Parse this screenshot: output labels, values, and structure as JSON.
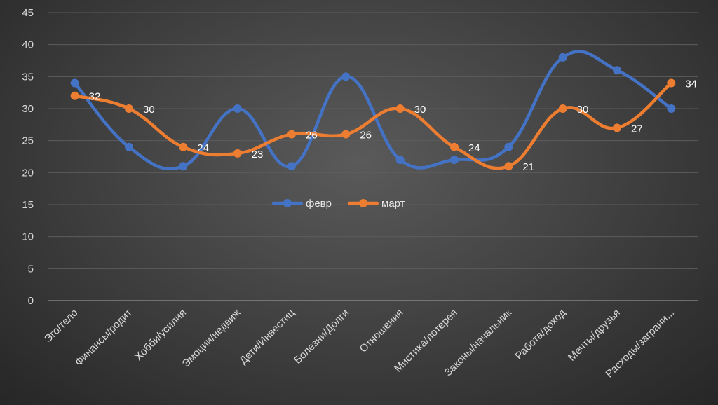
{
  "chart_data": {
    "type": "line",
    "title": "",
    "xlabel": "",
    "ylabel": "",
    "ylim": [
      0,
      45
    ],
    "yticks": [
      0,
      5,
      10,
      15,
      20,
      25,
      30,
      35,
      40,
      45
    ],
    "grid": true,
    "smooth": true,
    "legend_position": "center",
    "categories": [
      "Эго/тело",
      "Финансы/родит",
      "Хобби/усилия",
      "Эмоции/недвиж",
      "Дети/Инвестиц",
      "Болезни/Долги",
      "Отношения",
      "Мистика/лотерея",
      "Законы/начальник",
      "Работа/доход",
      "Мечты/друзья",
      "Расходы/заграни..."
    ],
    "series": [
      {
        "name": "февр",
        "color": "#4472C4",
        "values": [
          34,
          24,
          21,
          30,
          21,
          35,
          22,
          22,
          24,
          38,
          36,
          30
        ],
        "show_labels": false
      },
      {
        "name": "март",
        "color": "#ED7D31",
        "values": [
          32,
          30,
          24,
          23,
          26,
          26,
          30,
          24,
          21,
          30,
          27,
          34
        ],
        "show_labels": true
      }
    ]
  }
}
